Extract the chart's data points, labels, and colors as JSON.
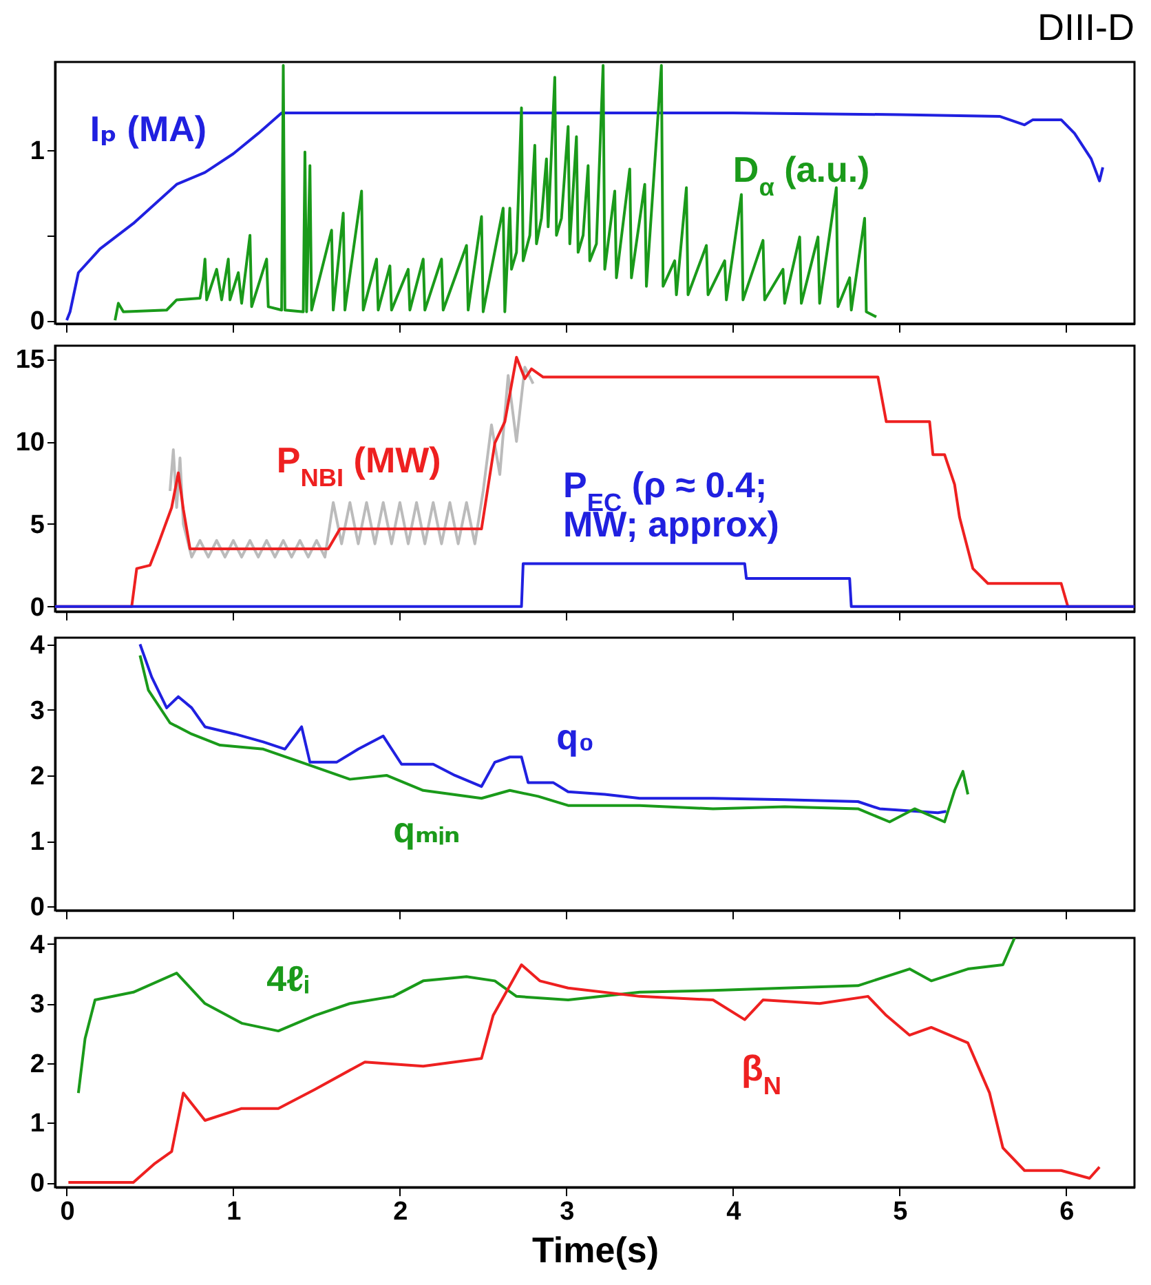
{
  "chart_data": [
    {
      "type": "line",
      "title": "DIII-D",
      "xlim": [
        -0.07,
        6.41
      ],
      "ylim": [
        -0.02,
        1.52
      ],
      "xticks": [
        0,
        1,
        2,
        3,
        4,
        5,
        6
      ],
      "yticks": [
        0,
        {
          "value": 0.5,
          "label": null
        },
        1
      ],
      "tick_labels": "y",
      "series": [
        {
          "name": "Iₚ (MA)",
          "color": "#2020e0",
          "x": [
            0.0,
            0.02,
            0.07,
            0.2,
            0.4,
            0.66,
            0.83,
            1.0,
            1.15,
            1.29,
            2.0,
            3.0,
            4.0,
            5.0,
            5.6,
            5.75,
            5.8,
            5.97,
            6.05,
            6.15,
            6.2,
            6.22
          ],
          "values": [
            0,
            0.05,
            0.28,
            0.42,
            0.57,
            0.8,
            0.87,
            0.98,
            1.1,
            1.22,
            1.22,
            1.22,
            1.22,
            1.21,
            1.2,
            1.15,
            1.18,
            1.18,
            1.1,
            0.95,
            0.82,
            0.9
          ]
        },
        {
          "name": "D$_{α}$ (a.u.)",
          "color": "#1a9a1a",
          "x": [
            0.29,
            0.31,
            0.34,
            0.6,
            0.66,
            0.8,
            0.82,
            0.83,
            0.84,
            0.9,
            0.93,
            0.97,
            0.98,
            1.03,
            1.05,
            1.1,
            1.11,
            1.2,
            1.21,
            1.29,
            1.3,
            1.31,
            1.42,
            1.43,
            1.44,
            1.46,
            1.47,
            1.59,
            1.6,
            1.66,
            1.67,
            1.77,
            1.78,
            1.86,
            1.87,
            1.94,
            1.95,
            2.05,
            2.06,
            2.14,
            2.15,
            2.25,
            2.26,
            2.4,
            2.41,
            2.49,
            2.5,
            2.62,
            2.63,
            2.66,
            2.67,
            2.7,
            2.73,
            2.74,
            2.78,
            2.81,
            2.82,
            2.85,
            2.88,
            2.89,
            2.93,
            2.94,
            2.97,
            3.01,
            3.02,
            3.06,
            3.07,
            3.1,
            3.13,
            3.14,
            3.18,
            3.22,
            3.23,
            3.29,
            3.3,
            3.38,
            3.39,
            3.47,
            3.48,
            3.57,
            3.58,
            3.65,
            3.66,
            3.72,
            3.73,
            3.84,
            3.85,
            3.95,
            3.96,
            4.05,
            4.06,
            4.18,
            4.19,
            4.3,
            4.31,
            4.4,
            4.41,
            4.51,
            4.52,
            4.62,
            4.63,
            4.7,
            4.71,
            4.79,
            4.8,
            4.86
          ],
          "values": [
            0,
            0.1,
            0.05,
            0.06,
            0.12,
            0.13,
            0.25,
            0.36,
            0.12,
            0.3,
            0.12,
            0.36,
            0.12,
            0.28,
            0.1,
            0.5,
            0.08,
            0.36,
            0.08,
            0.06,
            1.5,
            0.06,
            0.05,
            0.99,
            0.05,
            0.91,
            0.06,
            0.53,
            0.06,
            0.63,
            0.06,
            0.76,
            0.06,
            0.36,
            0.06,
            0.32,
            0.06,
            0.3,
            0.06,
            0.36,
            0.06,
            0.36,
            0.06,
            0.44,
            0.06,
            0.61,
            0.05,
            0.66,
            0.05,
            0.66,
            0.3,
            0.4,
            1.25,
            0.35,
            0.5,
            1.03,
            0.45,
            0.6,
            0.95,
            0.55,
            1.43,
            0.5,
            0.6,
            1.14,
            0.45,
            1.08,
            0.4,
            0.5,
            0.91,
            0.35,
            0.45,
            1.5,
            0.3,
            0.76,
            0.25,
            0.89,
            0.25,
            0.8,
            0.2,
            1.5,
            0.2,
            0.35,
            0.15,
            0.78,
            0.15,
            0.44,
            0.15,
            0.35,
            0.12,
            0.74,
            0.12,
            0.47,
            0.12,
            0.3,
            0.1,
            0.49,
            0.1,
            0.49,
            0.1,
            0.78,
            0.08,
            0.25,
            0.06,
            0.6,
            0.05,
            0.02
          ]
        }
      ]
    },
    {
      "type": "line",
      "xlim": [
        -0.07,
        6.41
      ],
      "ylim": [
        -0.3,
        15.8
      ],
      "xticks": [
        0,
        1,
        2,
        3,
        4,
        5,
        6
      ],
      "yticks": [
        0,
        5,
        10,
        15
      ],
      "tick_labels": "y",
      "series": [
        {
          "color": "#bbbbbb",
          "x": [
            0.62,
            0.64,
            0.66,
            0.68,
            0.7,
            0.75,
            0.8,
            0.85,
            0.9,
            0.95,
            1.0,
            1.05,
            1.1,
            1.15,
            1.2,
            1.25,
            1.3,
            1.35,
            1.4,
            1.45,
            1.5,
            1.55,
            1.6,
            1.65,
            1.7,
            1.75,
            1.8,
            1.85,
            1.9,
            1.95,
            2.0,
            2.05,
            2.1,
            2.15,
            2.2,
            2.25,
            2.3,
            2.35,
            2.4,
            2.45,
            2.5,
            2.55,
            2.6,
            2.65,
            2.7,
            2.75,
            2.8
          ],
          "values": [
            7,
            9.5,
            6,
            9,
            5,
            3.0,
            4.0,
            3.0,
            4.0,
            3.0,
            4.0,
            3.0,
            4.0,
            3.0,
            4.0,
            3.0,
            4.0,
            3.0,
            4.0,
            3.0,
            4.0,
            3.0,
            6.3,
            3.8,
            6.3,
            3.8,
            6.3,
            3.8,
            6.3,
            3.8,
            6.3,
            3.8,
            6.3,
            3.8,
            6.3,
            3.8,
            6.3,
            3.8,
            6.3,
            3.8,
            7,
            11,
            8,
            14,
            10,
            14.5,
            13.5
          ]
        },
        {
          "name": "P$_{NBI}$ (MW)",
          "color": "#ee2020",
          "x": [
            -0.07,
            0.39,
            0.42,
            0.5,
            0.55,
            0.63,
            0.67,
            0.7,
            0.74,
            1.57,
            1.64,
            2.49,
            2.57,
            2.63,
            2.7,
            2.75,
            2.79,
            2.86,
            4.87,
            4.92,
            5.18,
            5.2,
            5.27,
            5.29,
            5.33,
            5.36,
            5.44,
            5.53,
            5.97,
            6.01,
            6.41
          ],
          "values": [
            0,
            0,
            2.3,
            2.5,
            3.8,
            6,
            8.1,
            5.9,
            3.5,
            3.5,
            4.7,
            4.7,
            9.9,
            11.2,
            15.1,
            13.8,
            14.4,
            13.9,
            13.9,
            11.2,
            11.2,
            9.2,
            9.2,
            8.6,
            7.4,
            5.4,
            2.3,
            1.4,
            1.4,
            0,
            0
          ]
        },
        {
          "name": "P$_{EC}$ (ρ ≈ 0.4; MW; approx)",
          "color": "#2020e0",
          "x": [
            -0.07,
            2.73,
            2.74,
            4.07,
            4.08,
            4.7,
            4.71,
            6.41
          ],
          "values": [
            0,
            0,
            2.6,
            2.6,
            1.7,
            1.7,
            0,
            0
          ]
        }
      ]
    },
    {
      "type": "line",
      "xlim": [
        -0.07,
        6.41
      ],
      "ylim": [
        -0.06,
        4.1
      ],
      "xticks": [
        0,
        1,
        2,
        3,
        4,
        5,
        6
      ],
      "yticks": [
        0,
        1,
        2,
        3,
        4
      ],
      "tick_labels": "y",
      "series": [
        {
          "name": "q₀",
          "color": "#2020e0",
          "x": [
            0.44,
            0.51,
            0.6,
            0.67,
            0.75,
            0.83,
            1.01,
            1.18,
            1.31,
            1.41,
            1.46,
            1.62,
            1.75,
            1.9,
            2.01,
            2.2,
            2.33,
            2.49,
            2.57,
            2.66,
            2.73,
            2.77,
            2.92,
            3.01,
            3.23,
            3.44,
            3.88,
            4.31,
            4.75,
            4.88,
            5.23,
            5.28
          ],
          "values": [
            4.0,
            3.5,
            3.03,
            3.2,
            3.03,
            2.74,
            2.63,
            2.51,
            2.4,
            2.74,
            2.2,
            2.2,
            2.4,
            2.6,
            2.17,
            2.17,
            2.0,
            1.83,
            2.2,
            2.28,
            2.28,
            1.89,
            1.89,
            1.75,
            1.71,
            1.65,
            1.65,
            1.63,
            1.6,
            1.49,
            1.43,
            1.45
          ]
        },
        {
          "name": "qₘᵢₙ",
          "color": "#1a9a1a",
          "x": [
            0.44,
            0.49,
            0.62,
            0.75,
            0.92,
            1.18,
            1.44,
            1.7,
            1.92,
            2.14,
            2.49,
            2.66,
            2.83,
            3.01,
            3.44,
            3.88,
            4.31,
            4.75,
            4.94,
            5.09,
            5.27,
            5.33,
            5.38,
            5.41
          ],
          "values": [
            3.83,
            3.3,
            2.8,
            2.63,
            2.46,
            2.4,
            2.17,
            1.94,
            2.0,
            1.77,
            1.65,
            1.77,
            1.68,
            1.54,
            1.54,
            1.49,
            1.52,
            1.49,
            1.29,
            1.49,
            1.29,
            1.77,
            2.06,
            1.71
          ]
        }
      ]
    },
    {
      "type": "line",
      "xlabel": "Time(s)",
      "xlim": [
        -0.07,
        6.41
      ],
      "ylim": [
        -0.08,
        4.1
      ],
      "xticks": [
        0,
        1,
        2,
        3,
        4,
        5,
        6
      ],
      "yticks": [
        0,
        1,
        2,
        3,
        4
      ],
      "series": [
        {
          "name": "4ℓᵢ",
          "color": "#1a9a1a",
          "x": [
            0.07,
            0.11,
            0.17,
            0.4,
            0.66,
            0.83,
            1.05,
            1.27,
            1.49,
            1.7,
            1.96,
            2.14,
            2.4,
            2.57,
            2.7,
            3.01,
            3.44,
            3.88,
            4.31,
            4.75,
            5.06,
            5.19,
            5.41,
            5.62,
            5.69
          ],
          "values": [
            1.5,
            2.41,
            3.06,
            3.19,
            3.51,
            3.0,
            2.67,
            2.54,
            2.8,
            3.0,
            3.12,
            3.38,
            3.45,
            3.38,
            3.12,
            3.06,
            3.19,
            3.22,
            3.26,
            3.3,
            3.58,
            3.38,
            3.58,
            3.65,
            4.1
          ]
        },
        {
          "name": "β$_{N}$",
          "color": "#ee2020",
          "x": [
            0.01,
            0.4,
            0.53,
            0.63,
            0.7,
            0.83,
            1.05,
            1.27,
            1.49,
            1.79,
            2.14,
            2.49,
            2.56,
            2.73,
            2.84,
            3.01,
            3.44,
            3.88,
            4.07,
            4.18,
            4.52,
            4.81,
            4.92,
            5.06,
            5.19,
            5.41,
            5.54,
            5.62,
            5.75,
            5.97,
            6.14,
            6.2
          ],
          "values": [
            0,
            0,
            0.32,
            0.52,
            1.5,
            1.04,
            1.24,
            1.24,
            1.56,
            2.02,
            1.95,
            2.08,
            2.8,
            3.65,
            3.38,
            3.26,
            3.12,
            3.06,
            2.73,
            3.06,
            3.0,
            3.12,
            2.8,
            2.47,
            2.6,
            2.34,
            1.5,
            0.58,
            0.2,
            0.2,
            0.07,
            0.26
          ]
        }
      ]
    }
  ]
}
